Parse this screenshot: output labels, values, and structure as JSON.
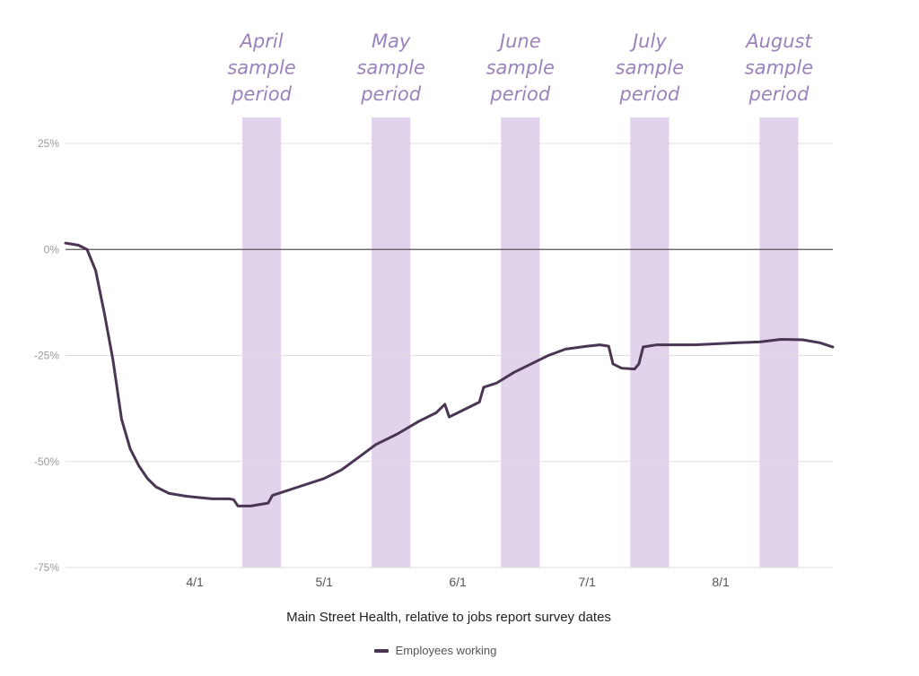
{
  "chart_data": {
    "type": "line",
    "title": "",
    "caption": "Main Street Health, relative to jobs report survey dates",
    "ylim": [
      -75,
      25
    ],
    "yticks": [
      {
        "value": 25,
        "label": "25%"
      },
      {
        "value": 0,
        "label": "0%"
      },
      {
        "value": -25,
        "label": "-25%"
      },
      {
        "value": -50,
        "label": "-50%"
      },
      {
        "value": -75,
        "label": "-75%"
      }
    ],
    "xlim": [
      "2020-03-02",
      "2020-08-27"
    ],
    "xticks": [
      {
        "date": "2020-04-01",
        "label": "4/1"
      },
      {
        "date": "2020-05-01",
        "label": "5/1"
      },
      {
        "date": "2020-06-01",
        "label": "6/1"
      },
      {
        "date": "2020-07-01",
        "label": "7/1"
      },
      {
        "date": "2020-08-01",
        "label": "8/1"
      }
    ],
    "grid": true,
    "legend_position": "bottom",
    "sample_periods": [
      {
        "lines": [
          "April",
          "sample",
          "period"
        ],
        "start": "2020-04-12",
        "end": "2020-04-21"
      },
      {
        "lines": [
          "May",
          "sample",
          "period"
        ],
        "start": "2020-05-12",
        "end": "2020-05-21"
      },
      {
        "lines": [
          "June",
          "sample",
          "period"
        ],
        "start": "2020-06-11",
        "end": "2020-06-20"
      },
      {
        "lines": [
          "July",
          "sample",
          "period"
        ],
        "start": "2020-07-11",
        "end": "2020-07-20"
      },
      {
        "lines": [
          "August",
          "sample",
          "period"
        ],
        "start": "2020-08-10",
        "end": "2020-08-19"
      }
    ],
    "series": [
      {
        "name": "Employees working",
        "color": "#4a3653",
        "points": [
          [
            "2020-03-02",
            1.5
          ],
          [
            "2020-03-05",
            1.0
          ],
          [
            "2020-03-07",
            0.0
          ],
          [
            "2020-03-09",
            -5
          ],
          [
            "2020-03-11",
            -15
          ],
          [
            "2020-03-13",
            -26
          ],
          [
            "2020-03-15",
            -40
          ],
          [
            "2020-03-17",
            -47
          ],
          [
            "2020-03-19",
            -51
          ],
          [
            "2020-03-21",
            -54
          ],
          [
            "2020-03-23",
            -56
          ],
          [
            "2020-03-26",
            -57.5
          ],
          [
            "2020-03-30",
            -58.2
          ],
          [
            "2020-04-05",
            -58.8
          ],
          [
            "2020-04-09",
            -58.8
          ],
          [
            "2020-04-10",
            -59
          ],
          [
            "2020-04-11",
            -60.5
          ],
          [
            "2020-04-14",
            -60.5
          ],
          [
            "2020-04-18",
            -59.8
          ],
          [
            "2020-04-19",
            -58
          ],
          [
            "2020-04-25",
            -56
          ],
          [
            "2020-05-01",
            -54
          ],
          [
            "2020-05-05",
            -52
          ],
          [
            "2020-05-09",
            -49
          ],
          [
            "2020-05-13",
            -46
          ],
          [
            "2020-05-18",
            -43.5
          ],
          [
            "2020-05-23",
            -40.5
          ],
          [
            "2020-05-27",
            -38.5
          ],
          [
            "2020-05-29",
            -36.5
          ],
          [
            "2020-05-30",
            -39.5
          ],
          [
            "2020-06-03",
            -37.5
          ],
          [
            "2020-06-06",
            -36
          ],
          [
            "2020-06-07",
            -32.5
          ],
          [
            "2020-06-10",
            -31.5
          ],
          [
            "2020-06-14",
            -29
          ],
          [
            "2020-06-18",
            -27
          ],
          [
            "2020-06-22",
            -25
          ],
          [
            "2020-06-26",
            -23.5
          ],
          [
            "2020-07-01",
            -22.8
          ],
          [
            "2020-07-04",
            -22.5
          ],
          [
            "2020-07-06",
            -22.8
          ],
          [
            "2020-07-07",
            -27
          ],
          [
            "2020-07-09",
            -28
          ],
          [
            "2020-07-12",
            -28.2
          ],
          [
            "2020-07-13",
            -27
          ],
          [
            "2020-07-14",
            -23
          ],
          [
            "2020-07-17",
            -22.5
          ],
          [
            "2020-07-26",
            -22.5
          ],
          [
            "2020-08-05",
            -22
          ],
          [
            "2020-08-10",
            -21.8
          ],
          [
            "2020-08-15",
            -21.2
          ],
          [
            "2020-08-20",
            -21.3
          ],
          [
            "2020-08-24",
            -22
          ],
          [
            "2020-08-27",
            -23
          ]
        ]
      }
    ]
  }
}
